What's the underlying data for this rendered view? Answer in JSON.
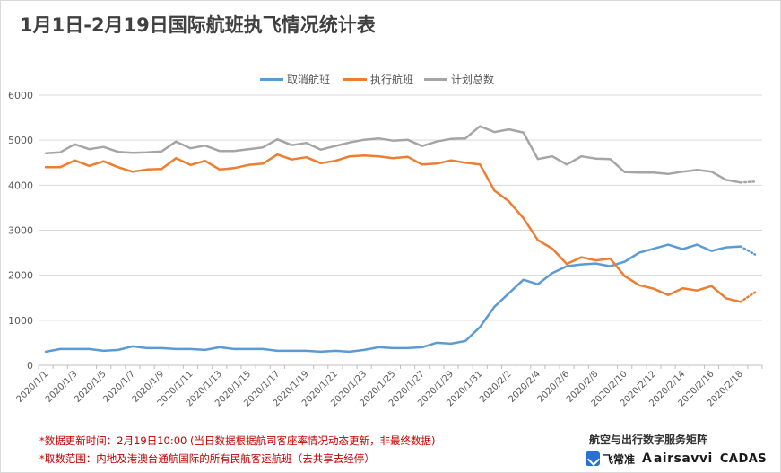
{
  "chart_data": {
    "type": "line",
    "title": "1月1日-2月19日国际航班执飞情况统计表",
    "xlabel": "",
    "ylabel": "",
    "ylim": [
      0,
      6000
    ],
    "yticks": [
      0,
      1000,
      2000,
      3000,
      4000,
      5000,
      6000
    ],
    "grid": "horizontal",
    "legend_position": "top",
    "x": [
      "2020/1/1",
      "2020/1/2",
      "2020/1/3",
      "2020/1/4",
      "2020/1/5",
      "2020/1/6",
      "2020/1/7",
      "2020/1/8",
      "2020/1/9",
      "2020/1/10",
      "2020/1/11",
      "2020/1/12",
      "2020/1/13",
      "2020/1/14",
      "2020/1/15",
      "2020/1/16",
      "2020/1/17",
      "2020/1/18",
      "2020/1/19",
      "2020/1/20",
      "2020/1/21",
      "2020/1/22",
      "2020/1/23",
      "2020/1/24",
      "2020/1/25",
      "2020/1/26",
      "2020/1/27",
      "2020/1/28",
      "2020/1/29",
      "2020/1/30",
      "2020/1/31",
      "2020/2/1",
      "2020/2/2",
      "2020/2/3",
      "2020/2/4",
      "2020/2/5",
      "2020/2/6",
      "2020/2/7",
      "2020/2/8",
      "2020/2/9",
      "2020/2/10",
      "2020/2/11",
      "2020/2/12",
      "2020/2/13",
      "2020/2/14",
      "2020/2/15",
      "2020/2/16",
      "2020/2/17",
      "2020/2/18",
      "2020/2/19"
    ],
    "xtick_labels": [
      "2020/1/1",
      "2020/1/3",
      "2020/1/5",
      "2020/1/7",
      "2020/1/9",
      "2020/1/11",
      "2020/1/13",
      "2020/1/15",
      "2020/1/17",
      "2020/1/19",
      "2020/1/21",
      "2020/1/23",
      "2020/1/25",
      "2020/1/27",
      "2020/1/29",
      "2020/1/31",
      "2020/2/2",
      "2020/2/4",
      "2020/2/6",
      "2020/2/8",
      "2020/2/10",
      "2020/2/12",
      "2020/2/14",
      "2020/2/16",
      "2020/2/18"
    ],
    "series": [
      {
        "name": "取消航班",
        "color": "#5b9bd5",
        "values": [
          300,
          360,
          360,
          360,
          320,
          340,
          420,
          380,
          380,
          360,
          360,
          340,
          400,
          360,
          360,
          360,
          320,
          320,
          320,
          300,
          320,
          300,
          340,
          400,
          380,
          380,
          400,
          500,
          480,
          540,
          850,
          1300,
          1600,
          1900,
          1800,
          2050,
          2200,
          2240,
          2260,
          2200,
          2300,
          2500,
          2590,
          2680,
          2580,
          2680,
          2540,
          2620,
          2640,
          2460
        ],
        "dotted_last": true
      },
      {
        "name": "执行航班",
        "color": "#ed7d31",
        "values": [
          4400,
          4400,
          4550,
          4430,
          4530,
          4400,
          4300,
          4350,
          4360,
          4600,
          4450,
          4540,
          4350,
          4380,
          4450,
          4480,
          4680,
          4570,
          4620,
          4490,
          4540,
          4640,
          4660,
          4640,
          4600,
          4630,
          4460,
          4480,
          4550,
          4500,
          4460,
          3880,
          3640,
          3270,
          2780,
          2590,
          2250,
          2400,
          2330,
          2370,
          1980,
          1780,
          1700,
          1560,
          1710,
          1660,
          1760,
          1490,
          1410,
          1620
        ],
        "dotted_last": true
      },
      {
        "name": "计划总数",
        "color": "#a5a5a5",
        "values": [
          4710,
          4730,
          4910,
          4800,
          4850,
          4740,
          4720,
          4730,
          4750,
          4970,
          4820,
          4880,
          4760,
          4760,
          4800,
          4840,
          5020,
          4890,
          4940,
          4790,
          4870,
          4950,
          5010,
          5040,
          4990,
          5010,
          4870,
          4970,
          5030,
          5040,
          5310,
          5180,
          5240,
          5170,
          4580,
          4640,
          4460,
          4640,
          4590,
          4580,
          4290,
          4280,
          4280,
          4250,
          4300,
          4340,
          4300,
          4120,
          4060,
          4080
        ],
        "dotted_last": true
      }
    ],
    "notes": [
      "*数据更新时间：2月19日10:00 (当日数据根据航司客座率情况动态更新，非最终数据)",
      "*取数范围：内地及港澳台通航国际的所有民航客运航班（去共享去经停）"
    ]
  },
  "brand": {
    "tagline": "航空与出行数字服务矩阵",
    "logos": [
      "飞常准",
      "airsavvi",
      "CADAS"
    ],
    "logo_a": "A"
  }
}
